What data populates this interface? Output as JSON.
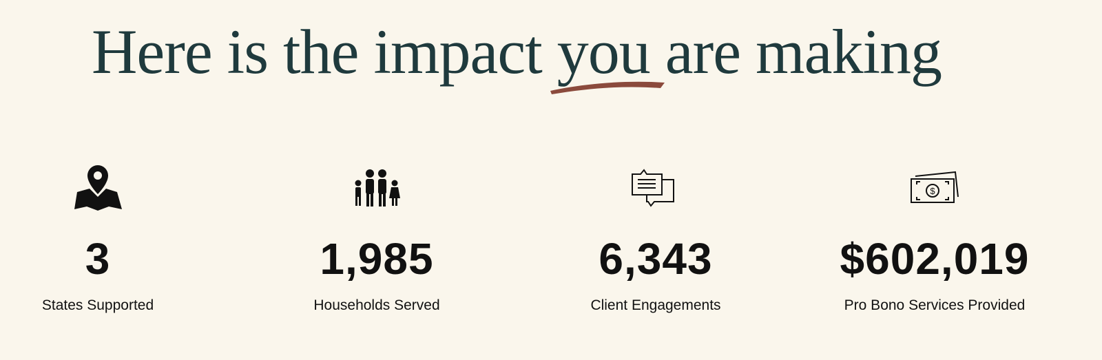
{
  "heading": {
    "before": "Here is the impact",
    "highlight": "you",
    "after": "are making"
  },
  "stats": [
    {
      "value": "3",
      "label": "States Supported"
    },
    {
      "value": "1,985",
      "label": "Households Served"
    },
    {
      "value": "6,343",
      "label": "Client Engagements"
    },
    {
      "value": "$602,019",
      "label": "Pro Bono Services Provided"
    }
  ]
}
